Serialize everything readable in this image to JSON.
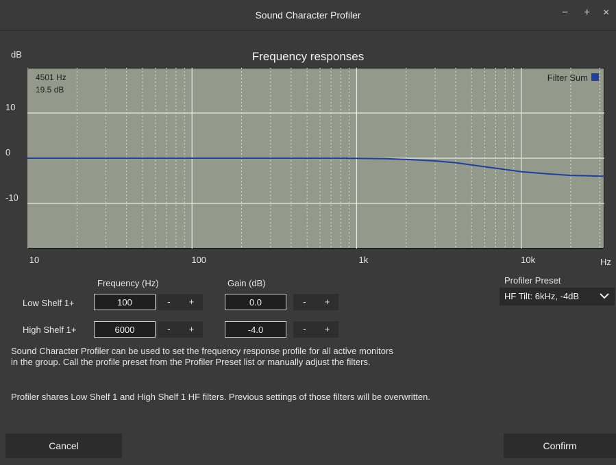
{
  "window": {
    "title": "Sound Character Profiler",
    "minimize": "−",
    "maximize": "+",
    "close": "×"
  },
  "chart_data": {
    "type": "line",
    "title": "Frequency responses",
    "ylabel": "dB",
    "xlabel": "Hz",
    "x_scale": "log",
    "xlim": [
      10,
      32000
    ],
    "ylim": [
      -20,
      20
    ],
    "x_ticks": [
      {
        "value": 10,
        "label": "10"
      },
      {
        "value": 100,
        "label": "100"
      },
      {
        "value": 1000,
        "label": "1k"
      },
      {
        "value": 10000,
        "label": "10k"
      }
    ],
    "y_ticks": [
      {
        "value": 10,
        "label": "10"
      },
      {
        "value": 0,
        "label": "0"
      },
      {
        "value": -10,
        "label": "-10"
      }
    ],
    "grid": true,
    "cursor_readout": {
      "freq": "4501 Hz",
      "gain": "19.5 dB"
    },
    "legend": {
      "position": "top-right",
      "label": "Filter Sum"
    },
    "series": [
      {
        "name": "Filter Sum",
        "color": "#1f3fa0",
        "x": [
          10,
          100,
          500,
          850,
          1000,
          1500,
          2000,
          3000,
          4000,
          5000,
          6000,
          8000,
          10000,
          15000,
          20000,
          32000
        ],
        "y": [
          0,
          0,
          0,
          0,
          -0.05,
          -0.1,
          -0.25,
          -0.6,
          -1.0,
          -1.5,
          -1.9,
          -2.5,
          -3.0,
          -3.5,
          -3.8,
          -4.0
        ]
      }
    ]
  },
  "controls": {
    "frequency_header": "Frequency (Hz)",
    "gain_header": "Gain (dB)",
    "low_shelf": {
      "label": "Low Shelf 1+",
      "frequency": "100",
      "gain": "0.0"
    },
    "high_shelf": {
      "label": "High Shelf 1+",
      "frequency": "6000",
      "gain": "-4.0"
    },
    "minus": "-",
    "plus": "+"
  },
  "preset": {
    "label": "Profiler Preset",
    "selected": "HF Tilt: 6kHz, -4dB"
  },
  "description": {
    "line1": "Sound Character Profiler can be used to set the frequency response profile for all active monitors",
    "line2": "in the group. Call the profile preset from the Profiler Preset  list or manually adjust the filters.",
    "line3": "Profiler shares Low Shelf 1 and High Shelf 1 HF filters. Previous settings of those filters will be overwritten."
  },
  "buttons": {
    "cancel": "Cancel",
    "confirm": "Confirm"
  }
}
